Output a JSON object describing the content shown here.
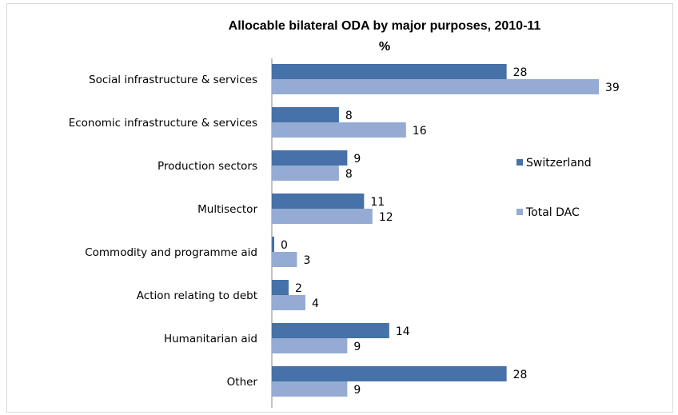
{
  "chart_data": {
    "type": "bar",
    "orientation": "horizontal",
    "title": "Allocable bilateral ODA by major purposes, 2010-11",
    "subtitle": "%",
    "categories": [
      "Social infrastructure & services",
      "Economic infrastructure & services",
      "Production sectors",
      "Multisector",
      "Commodity and programme aid",
      "Action relating to debt",
      "Humanitarian aid",
      "Other"
    ],
    "series": [
      {
        "name": "Switzerland",
        "color": "#4671a9",
        "values": [
          28,
          8,
          9,
          11,
          0,
          2,
          14,
          28
        ]
      },
      {
        "name": "Total DAC",
        "color": "#95abd4",
        "values": [
          39,
          16,
          8,
          12,
          3,
          4,
          9,
          9
        ]
      }
    ],
    "xlim": [
      0,
      39
    ],
    "grid": false,
    "legend_position": "right"
  }
}
